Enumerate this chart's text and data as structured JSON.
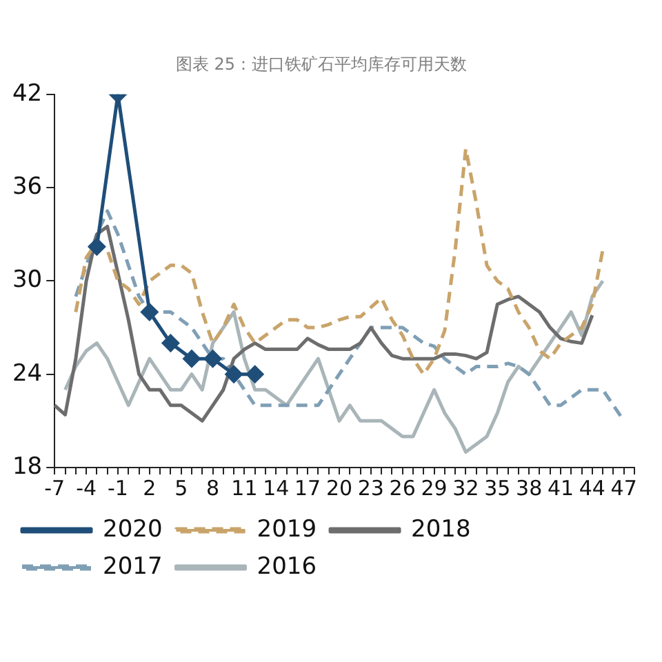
{
  "chart_data": {
    "type": "line",
    "title": "图表 25：进口铁矿石平均库存可用天数",
    "categories": [
      "-7",
      null,
      null,
      "-4",
      null,
      null,
      "-1",
      null,
      null,
      "2",
      null,
      null,
      "5",
      null,
      null,
      "8",
      null,
      null,
      "11",
      null,
      null,
      "14",
      null,
      null,
      "17",
      null,
      null,
      "20",
      null,
      null,
      "23",
      null,
      null,
      "26",
      null,
      null,
      "29",
      null,
      null,
      "32",
      null,
      null,
      "35",
      null,
      null,
      "38",
      null,
      null,
      "41",
      null,
      null,
      "44",
      null,
      null,
      "47",
      null
    ],
    "ylim": [
      18,
      42
    ],
    "yticks": [
      18,
      24,
      30,
      36,
      42
    ],
    "grid": false,
    "legend": "bottom",
    "series": [
      {
        "name": "2020",
        "color": "#1f4e79",
        "marker": "diamond",
        "line_style": "solid",
        "values": [
          null,
          null,
          null,
          null,
          32.2,
          null,
          42,
          null,
          null,
          28,
          null,
          26,
          null,
          25,
          null,
          25,
          null,
          24,
          null,
          24,
          null,
          null,
          null,
          null,
          null,
          null,
          null,
          null,
          null,
          null,
          null,
          null,
          null,
          null,
          null,
          null,
          null,
          null,
          null,
          null,
          null,
          null,
          null,
          null,
          null,
          null,
          null,
          null,
          null,
          null,
          null,
          null,
          null,
          null,
          null,
          null
        ]
      },
      {
        "name": "2019",
        "color": "#c9a46a",
        "marker": "none",
        "line_style": "dashed",
        "values": [
          null,
          null,
          28,
          31.5,
          32.5,
          32,
          30,
          29.5,
          28.5,
          30,
          30.5,
          31,
          31,
          30.5,
          28,
          26,
          27,
          28.5,
          27,
          26,
          26.5,
          27,
          27.5,
          27.5,
          27,
          27,
          27.2,
          27.5,
          27.7,
          27.7,
          28.3,
          28.9,
          27.5,
          26.5,
          25,
          24,
          25,
          26.8,
          32,
          38.5,
          35,
          31,
          30,
          29.5,
          28,
          27,
          25.5,
          25,
          26,
          26.5,
          27,
          28.5,
          32,
          null,
          null,
          null
        ]
      },
      {
        "name": "2018",
        "color": "#6d6d6d",
        "marker": "none",
        "line_style": "solid",
        "values": [
          22,
          21.4,
          25,
          30,
          33,
          33.5,
          30.5,
          27.5,
          24,
          23,
          23,
          22,
          22,
          21.5,
          21,
          22,
          23,
          25,
          25.6,
          26,
          25.6,
          25.6,
          25.6,
          25.6,
          26.3,
          25.9,
          25.6,
          25.6,
          25.6,
          26,
          27,
          26,
          25.2,
          25,
          25,
          25,
          25,
          25.3,
          25.3,
          25.2,
          25,
          25.4,
          28.5,
          28.8,
          29,
          28.5,
          28,
          27,
          26.3,
          26.1,
          26,
          27.8,
          null,
          null,
          null,
          null
        ]
      },
      {
        "name": "2017",
        "color": "#7f9fb5",
        "marker": "none",
        "line_style": "dashed",
        "values": [
          null,
          null,
          29,
          31,
          33,
          34.5,
          33,
          31,
          29,
          28,
          28,
          28,
          27.5,
          27,
          26,
          25,
          25,
          24,
          23,
          22,
          22,
          22,
          22,
          22,
          22,
          22,
          23,
          24,
          25,
          26,
          27,
          27,
          27,
          27,
          26.5,
          26,
          25.8,
          25,
          24.5,
          24,
          24.5,
          24.5,
          24.5,
          24.7,
          24.5,
          24,
          23,
          22,
          22,
          22.5,
          23,
          23,
          23,
          22,
          21,
          null
        ]
      },
      {
        "name": "2016",
        "color": "#a9b5b8",
        "marker": "none",
        "line_style": "solid",
        "values": [
          null,
          23,
          24.5,
          25.5,
          26,
          25,
          23.5,
          22,
          23.5,
          25,
          24,
          23,
          23,
          24,
          23,
          26,
          27,
          28,
          25,
          23,
          23,
          22.5,
          22,
          23,
          24,
          25,
          23,
          21,
          22,
          21,
          21,
          21,
          20.5,
          20,
          20,
          21.5,
          23,
          21.5,
          20.5,
          19,
          19.5,
          20,
          21.5,
          23.5,
          24.5,
          24,
          25,
          26,
          27,
          28,
          26.5,
          29,
          30,
          null,
          null,
          null
        ]
      }
    ]
  }
}
